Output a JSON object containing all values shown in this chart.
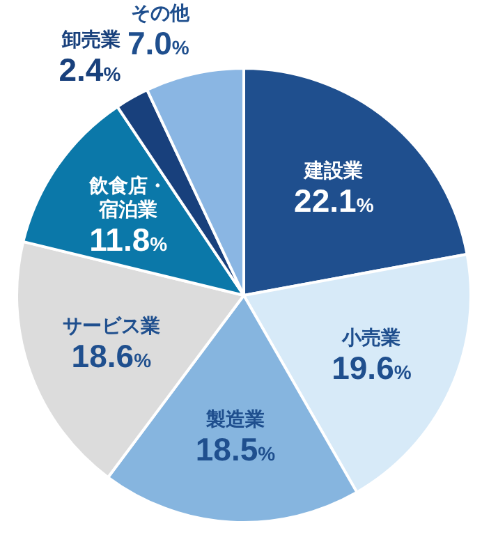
{
  "chart_data": {
    "type": "pie",
    "categories": [
      "建設業",
      "小売業",
      "製造業",
      "サービス業",
      "飲食店・宿泊業",
      "卸売業",
      "その他"
    ],
    "values": [
      22.1,
      19.6,
      18.5,
      18.6,
      11.8,
      2.4,
      7.0
    ],
    "value_labels": [
      "22.1%",
      "19.6%",
      "18.5%",
      "18.6%",
      "11.8%",
      "2.4%",
      "7.0%"
    ],
    "colors": [
      "#1f4f8e",
      "#d7eaf8",
      "#86b5df",
      "#dcdcdc",
      "#0b78a9",
      "#18407c",
      "#8ab6e3"
    ],
    "legend": false
  }
}
